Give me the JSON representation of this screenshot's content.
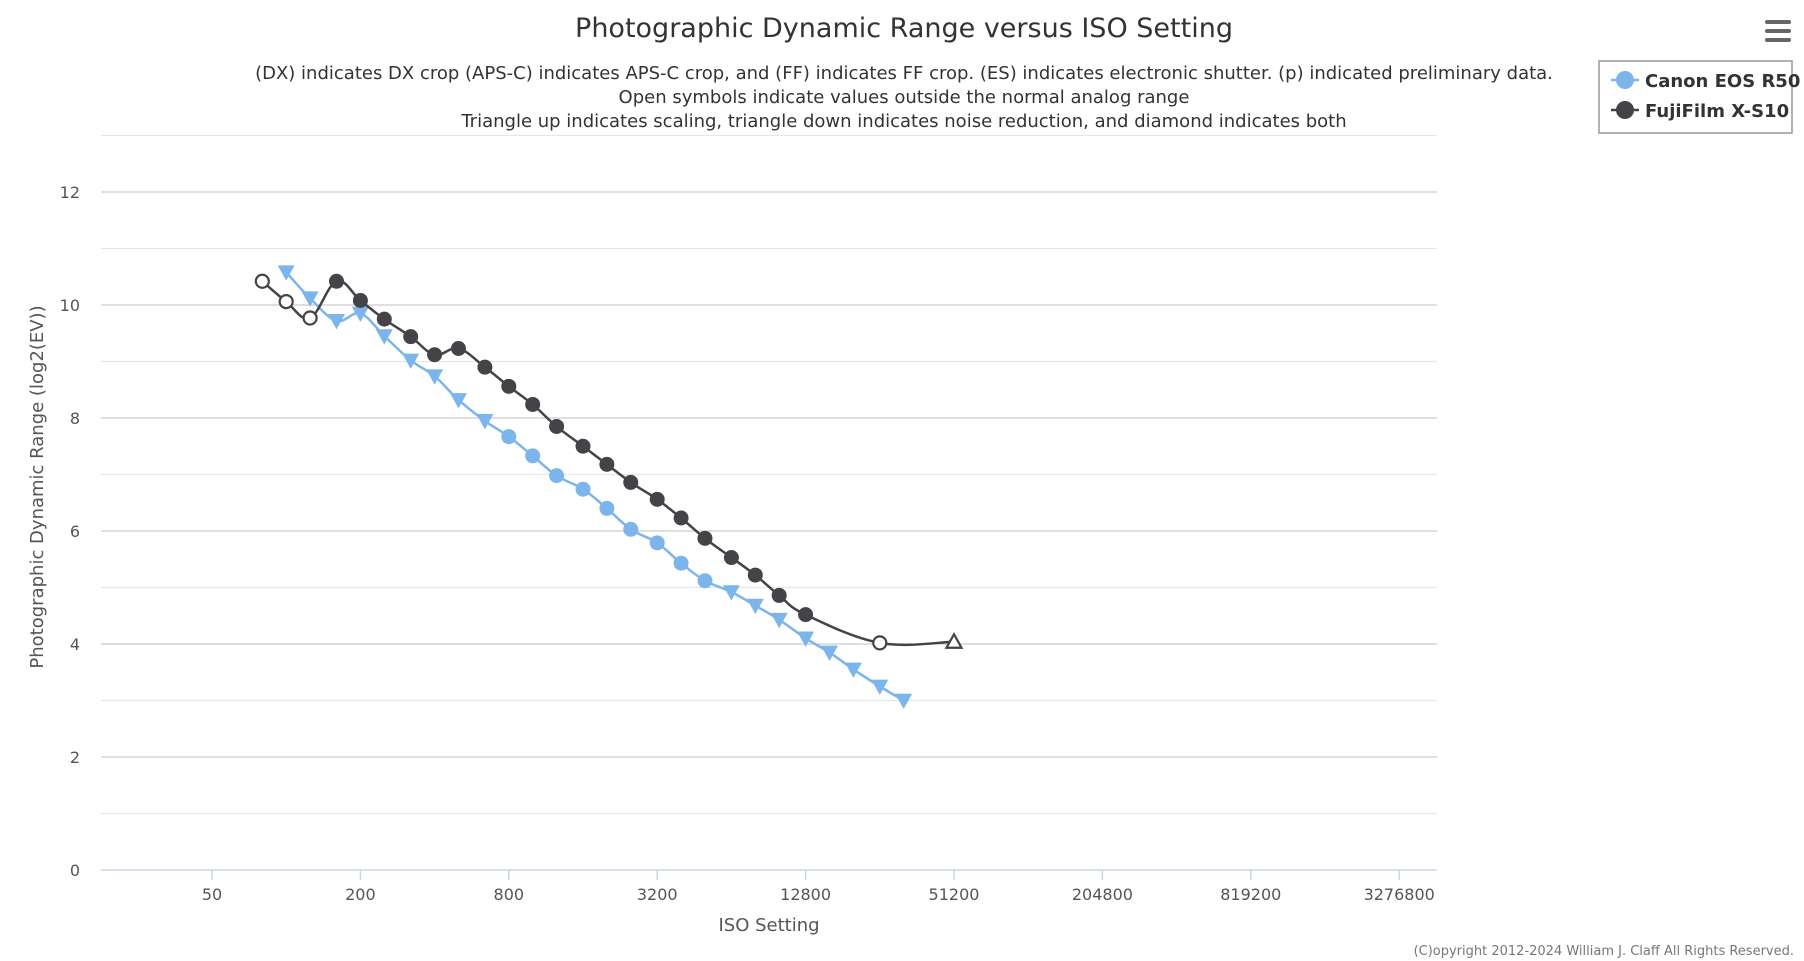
{
  "chart_data": {
    "type": "line",
    "title": "Photographic Dynamic Range versus ISO Setting",
    "subtitle": [
      "(DX) indicates DX crop (APS-C) indicates APS-C crop, and (FF) indicates FF crop. (ES) indicates electronic shutter. (p) indicated preliminary data.",
      "Open symbols indicate values outside the normal analog range",
      "Triangle up indicates scaling, triangle down indicates noise reduction, and diamond indicates both"
    ],
    "xlabel": "ISO Setting",
    "ylabel": "Photographic Dynamic Range (log2(EV))",
    "x_scale": "log2",
    "x_ticks": [
      "50",
      "200",
      "800",
      "3200",
      "12800",
      "51200",
      "204800",
      "819200",
      "3276800"
    ],
    "y_ticks": [
      "0",
      "2",
      "4",
      "6",
      "8",
      "10",
      "12"
    ],
    "ylim": [
      0,
      13
    ],
    "grid": "horizontal",
    "legend_position": "top-right",
    "series": [
      {
        "name": "Canon EOS R50",
        "color": "#7cb5ec",
        "points": [
          {
            "x": 100,
            "y": 10.58,
            "marker": "triangle-down"
          },
          {
            "x": 125,
            "y": 10.12,
            "marker": "triangle-down"
          },
          {
            "x": 160,
            "y": 9.72,
            "marker": "triangle-down"
          },
          {
            "x": 200,
            "y": 9.85,
            "marker": "triangle-down"
          },
          {
            "x": 250,
            "y": 9.45,
            "marker": "triangle-down"
          },
          {
            "x": 320,
            "y": 9.02,
            "marker": "triangle-down"
          },
          {
            "x": 400,
            "y": 8.74,
            "marker": "triangle-down"
          },
          {
            "x": 500,
            "y": 8.32,
            "marker": "triangle-down"
          },
          {
            "x": 640,
            "y": 7.95,
            "marker": "triangle-down"
          },
          {
            "x": 800,
            "y": 7.67,
            "marker": "circle"
          },
          {
            "x": 1000,
            "y": 7.33,
            "marker": "circle"
          },
          {
            "x": 1250,
            "y": 6.98,
            "marker": "circle"
          },
          {
            "x": 1600,
            "y": 6.74,
            "marker": "circle"
          },
          {
            "x": 2000,
            "y": 6.4,
            "marker": "circle"
          },
          {
            "x": 2500,
            "y": 6.03,
            "marker": "circle"
          },
          {
            "x": 3200,
            "y": 5.79,
            "marker": "circle"
          },
          {
            "x": 4000,
            "y": 5.43,
            "marker": "circle"
          },
          {
            "x": 5000,
            "y": 5.12,
            "marker": "circle"
          },
          {
            "x": 6400,
            "y": 4.92,
            "marker": "triangle-down"
          },
          {
            "x": 8000,
            "y": 4.68,
            "marker": "triangle-down"
          },
          {
            "x": 10000,
            "y": 4.43,
            "marker": "triangle-down"
          },
          {
            "x": 12800,
            "y": 4.1,
            "marker": "triangle-down"
          },
          {
            "x": 16000,
            "y": 3.85,
            "marker": "triangle-down"
          },
          {
            "x": 20000,
            "y": 3.55,
            "marker": "triangle-down"
          },
          {
            "x": 25600,
            "y": 3.25,
            "marker": "triangle-down"
          },
          {
            "x": 32000,
            "y": 3.0,
            "marker": "triangle-down"
          }
        ]
      },
      {
        "name": "FujiFilm X-S10",
        "color": "#434348",
        "points": [
          {
            "x": 80,
            "y": 10.42,
            "marker": "circle-open"
          },
          {
            "x": 100,
            "y": 10.06,
            "marker": "circle-open"
          },
          {
            "x": 125,
            "y": 9.77,
            "marker": "circle-open"
          },
          {
            "x": 160,
            "y": 10.42,
            "marker": "circle"
          },
          {
            "x": 200,
            "y": 10.08,
            "marker": "circle"
          },
          {
            "x": 250,
            "y": 9.75,
            "marker": "circle"
          },
          {
            "x": 320,
            "y": 9.44,
            "marker": "circle"
          },
          {
            "x": 400,
            "y": 9.12,
            "marker": "circle"
          },
          {
            "x": 500,
            "y": 9.23,
            "marker": "circle"
          },
          {
            "x": 640,
            "y": 8.9,
            "marker": "circle"
          },
          {
            "x": 800,
            "y": 8.56,
            "marker": "circle"
          },
          {
            "x": 1000,
            "y": 8.24,
            "marker": "circle"
          },
          {
            "x": 1250,
            "y": 7.85,
            "marker": "circle"
          },
          {
            "x": 1600,
            "y": 7.5,
            "marker": "circle"
          },
          {
            "x": 2000,
            "y": 7.18,
            "marker": "circle"
          },
          {
            "x": 2500,
            "y": 6.86,
            "marker": "circle"
          },
          {
            "x": 3200,
            "y": 6.56,
            "marker": "circle"
          },
          {
            "x": 4000,
            "y": 6.23,
            "marker": "circle"
          },
          {
            "x": 5000,
            "y": 5.87,
            "marker": "circle"
          },
          {
            "x": 6400,
            "y": 5.53,
            "marker": "circle"
          },
          {
            "x": 8000,
            "y": 5.22,
            "marker": "circle"
          },
          {
            "x": 10000,
            "y": 4.86,
            "marker": "circle"
          },
          {
            "x": 12800,
            "y": 4.52,
            "marker": "circle"
          },
          {
            "x": 25600,
            "y": 4.02,
            "marker": "circle-open"
          },
          {
            "x": 51200,
            "y": 4.04,
            "marker": "triangle-up-open"
          }
        ]
      }
    ]
  },
  "credit": "(C)opyright 2012-2024 William J. Claff All Rights Reserved.",
  "menu": {
    "icon": "hamburger-menu-icon"
  }
}
